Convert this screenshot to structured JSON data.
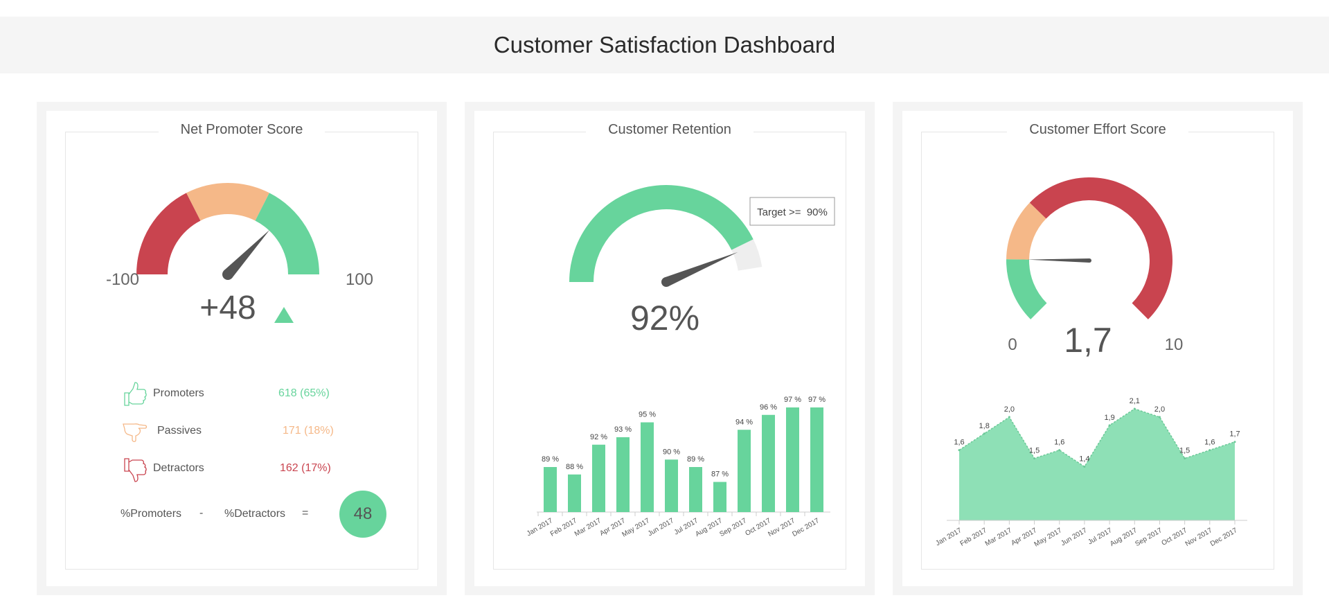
{
  "header": {
    "title": "Customer Satisfaction Dashboard"
  },
  "colors": {
    "green": "#67d49c",
    "orange": "#f5b888",
    "red": "#c9444f",
    "needle": "#555555",
    "grey_track": "#eeeeee"
  },
  "nps": {
    "title": "Net Promoter Score",
    "min_label": "-100",
    "max_label": "100",
    "value_label": "+48",
    "trend_icon": "triangle-up-icon",
    "legend": [
      {
        "icon": "thumbs-up-icon",
        "label": "Promoters",
        "value": "618 (65%)",
        "color": "#67d49c"
      },
      {
        "icon": "thumb-sideways-icon",
        "label": "Passives",
        "value": "171 (18%)",
        "color": "#f5b888"
      },
      {
        "icon": "thumbs-down-icon",
        "label": "Detractors",
        "value": "162 (17%)",
        "color": "#c9444f"
      }
    ],
    "formula": {
      "left": "%Promoters",
      "minus": "-",
      "right": "%Detractors",
      "equals": "=",
      "result": "48"
    }
  },
  "retention": {
    "title": "Customer Retention",
    "value_label": "92%",
    "target_label": "Target >=  90%"
  },
  "effort": {
    "title": "Customer Effort Score",
    "min_label": "0",
    "max_label": "10",
    "value_label": "1,7"
  },
  "chart_data": [
    {
      "type": "gauge",
      "name": "Net Promoter Score",
      "min": -100,
      "max": 100,
      "value": 48,
      "bands": [
        {
          "from": -100,
          "to": -30,
          "color": "#c9444f"
        },
        {
          "from": -30,
          "to": 30,
          "color": "#f5b888"
        },
        {
          "from": 30,
          "to": 100,
          "color": "#67d49c"
        }
      ]
    },
    {
      "type": "gauge",
      "name": "Customer Retention",
      "min": 0,
      "max": 100,
      "value": 92,
      "target": 90,
      "bands": [
        {
          "from": 0,
          "to": 90,
          "color": "#67d49c"
        },
        {
          "from": 90,
          "to": 100,
          "color": "#eeeeee"
        }
      ]
    },
    {
      "type": "bar",
      "categories": [
        "Jan 2017",
        "Feb 2017",
        "Mar 2017",
        "Apr 2017",
        "May 2017",
        "Jun 2017",
        "Jul 2017",
        "Aug 2017",
        "Sep 2017",
        "Oct 2017",
        "Nov 2017",
        "Dec 2017"
      ],
      "values": [
        89,
        88,
        92,
        93,
        95,
        90,
        89,
        87,
        94,
        96,
        97,
        97
      ],
      "labels": [
        "89 %",
        "88 %",
        "92 %",
        "93 %",
        "95 %",
        "90 %",
        "89 %",
        "87 %",
        "94 %",
        "96 %",
        "97 %",
        "97 %"
      ],
      "ylim": [
        85,
        97
      ],
      "color": "#67d49c"
    },
    {
      "type": "gauge",
      "name": "Customer Effort Score",
      "min": 0,
      "max": 10,
      "value": 1.7,
      "bands": [
        {
          "from": 0,
          "to": 1.7,
          "color": "#67d49c"
        },
        {
          "from": 1.7,
          "to": 3.3,
          "color": "#f5b888"
        },
        {
          "from": 3.3,
          "to": 10,
          "color": "#c9444f"
        }
      ]
    },
    {
      "type": "area",
      "categories": [
        "Jan 2017",
        "Feb 2017",
        "Mar 2017",
        "Apr 2017",
        "May 2017",
        "Jun 2017",
        "Jul 2017",
        "Aug 2017",
        "Sep 2017",
        "Oct 2017",
        "Nov 2017",
        "Dec 2017"
      ],
      "values": [
        1.6,
        1.8,
        2.0,
        1.5,
        1.6,
        1.4,
        1.9,
        2.1,
        2.0,
        1.5,
        1.6,
        1.7
      ],
      "labels": [
        "1,6",
        "1,8",
        "2,0",
        "1,5",
        "1,6",
        "1,4",
        "1,9",
        "2,1",
        "2,0",
        "1,5",
        "1,6",
        "1,7"
      ],
      "ylim": [
        0.75,
        2.1
      ],
      "color": "#8ee0b6"
    }
  ]
}
